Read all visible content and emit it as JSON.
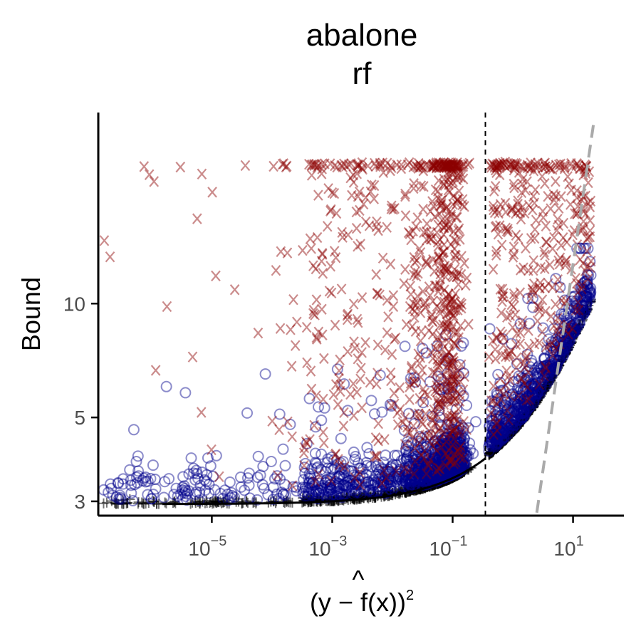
{
  "chart_data": {
    "type": "scatter",
    "title": [
      "abalone",
      "rf"
    ],
    "ylabel": "Bound",
    "xlabel": {
      "prefix": "(y − ",
      "hat": "^",
      "f": "f",
      "suffix": "(x))",
      "exponent": "2"
    },
    "x_scale": "log10",
    "y_scale": "log",
    "xlim": [
      1.3e-07,
      70
    ],
    "ylim": [
      2.75,
      32
    ],
    "x_ticks": [
      {
        "value": 1e-05,
        "base": "10",
        "exp": "−5"
      },
      {
        "value": 0.001,
        "base": "10",
        "exp": "−3"
      },
      {
        "value": 0.1,
        "base": "10",
        "exp": "−1"
      },
      {
        "value": 10,
        "base": "10",
        "exp": "1"
      }
    ],
    "y_ticks": [
      {
        "value": 3,
        "label": "3"
      },
      {
        "value": 5,
        "label": "5"
      },
      {
        "value": 10,
        "label": "10"
      }
    ],
    "grid": false,
    "legend": "none",
    "threshold_x": 0.35,
    "bound_curve": {
      "a": 2.95,
      "b": 1.6
    },
    "diagonal_line": [
      [
        2.5,
        2.8
      ],
      [
        22,
        30
      ]
    ],
    "series": [
      {
        "marker": "x",
        "color": "#8b0000",
        "opacity": 0.45,
        "n": 1100
      },
      {
        "marker": "o",
        "color": "#00008b",
        "opacity": 0.45,
        "n": 1800
      },
      {
        "marker": "+",
        "color": "#000000",
        "opacity": 0.55,
        "n": 1300
      }
    ],
    "colors": {
      "x_points": "#8b0000",
      "o_points": "#00008b",
      "plus_points": "#000000",
      "bound_line": "#000000",
      "diagonal": "#aaaaaa",
      "threshold": "#000000"
    }
  }
}
